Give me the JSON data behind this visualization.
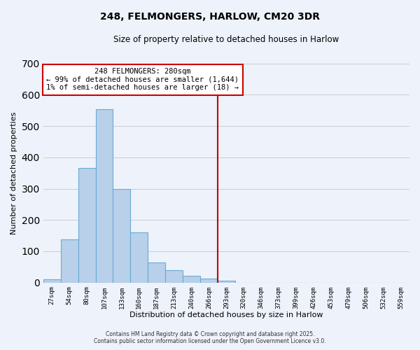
{
  "title": "248, FELMONGERS, HARLOW, CM20 3DR",
  "subtitle": "Size of property relative to detached houses in Harlow",
  "xlabel": "Distribution of detached houses by size in Harlow",
  "ylabel": "Number of detached properties",
  "bin_labels": [
    "27sqm",
    "54sqm",
    "80sqm",
    "107sqm",
    "133sqm",
    "160sqm",
    "187sqm",
    "213sqm",
    "240sqm",
    "266sqm",
    "293sqm",
    "320sqm",
    "346sqm",
    "373sqm",
    "399sqm",
    "426sqm",
    "453sqm",
    "479sqm",
    "506sqm",
    "532sqm",
    "559sqm"
  ],
  "bin_values": [
    10,
    137,
    366,
    554,
    299,
    161,
    65,
    39,
    22,
    12,
    7,
    0,
    0,
    0,
    0,
    0,
    0,
    0,
    0,
    0,
    0
  ],
  "bar_color": "#b8d0ea",
  "bar_edge_color": "#6aaad4",
  "vline_x_index": 10.0,
  "vline_color": "#cc0000",
  "annotation_line1": "248 FELMONGERS: 280sqm",
  "annotation_line2": "← 99% of detached houses are smaller (1,644)",
  "annotation_line3": "1% of semi-detached houses are larger (18) →",
  "annotation_box_color": "#ffffff",
  "annotation_box_edge_color": "#cc0000",
  "ylim": [
    0,
    700
  ],
  "yticks": [
    0,
    100,
    200,
    300,
    400,
    500,
    600,
    700
  ],
  "grid_color": "#cccccc",
  "background_color": "#eef2fb",
  "footer_line1": "Contains HM Land Registry data © Crown copyright and database right 2025.",
  "footer_line2": "Contains public sector information licensed under the Open Government Licence v3.0."
}
